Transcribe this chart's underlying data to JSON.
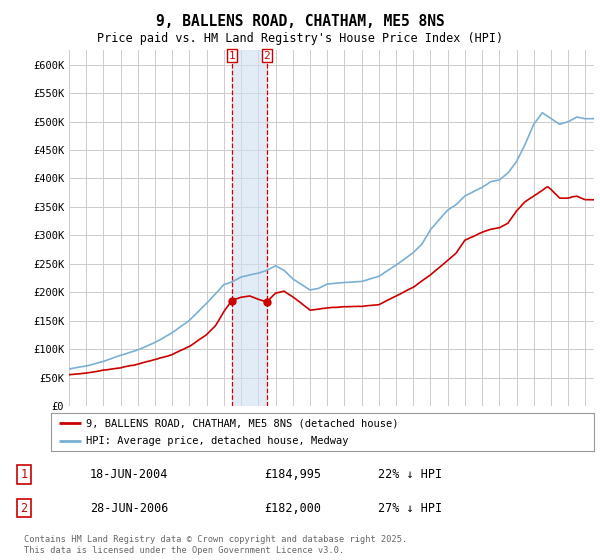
{
  "title": "9, BALLENS ROAD, CHATHAM, ME5 8NS",
  "subtitle": "Price paid vs. HM Land Registry's House Price Index (HPI)",
  "legend_label_red": "9, BALLENS ROAD, CHATHAM, ME5 8NS (detached house)",
  "legend_label_blue": "HPI: Average price, detached house, Medway",
  "red_color": "#cc0000",
  "blue_color": "#7bafd4",
  "shade_color": "#d0e0f0",
  "shade_alpha": 0.6,
  "background_color": "#ffffff",
  "grid_color": "#cccccc",
  "marker1_year": 2004.47,
  "marker1_value": 184995,
  "marker2_year": 2006.49,
  "marker2_value": 182000,
  "shade_x1": 2004.47,
  "shade_x2": 2006.49,
  "footnote": "Contains HM Land Registry data © Crown copyright and database right 2025.\nThis data is licensed under the Open Government Licence v3.0.",
  "ytick_labels": [
    "£0",
    "£50K",
    "£100K",
    "£150K",
    "£200K",
    "£250K",
    "£300K",
    "£350K",
    "£400K",
    "£450K",
    "£500K",
    "£550K",
    "£600K"
  ],
  "ytick_vals": [
    0,
    50000,
    100000,
    150000,
    200000,
    250000,
    300000,
    350000,
    400000,
    450000,
    500000,
    550000,
    600000
  ],
  "ylim_top": 625000,
  "xlim_left": 1995.0,
  "xlim_right": 2025.5
}
